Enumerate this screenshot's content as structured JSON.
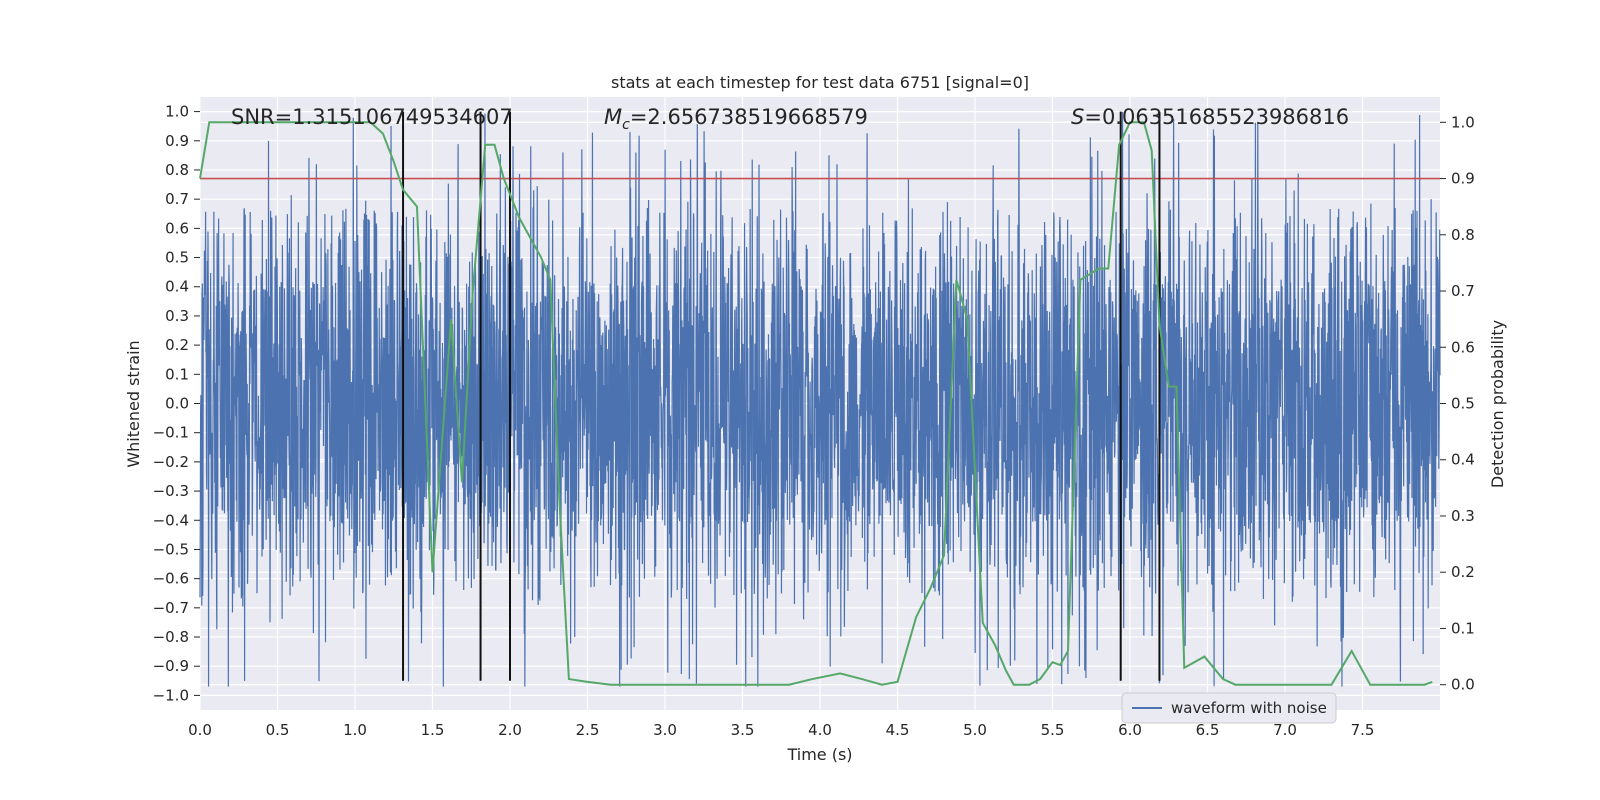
{
  "chart_data": {
    "type": "line",
    "title": "stats at each timestep for test data 6751 [signal=0]",
    "xlabel": "Time (s)",
    "ylabel_left": "Whitened strain",
    "ylabel_right": "Detection probability",
    "xlim": [
      0.0,
      8.0
    ],
    "ylim_left": [
      -1.05,
      1.05
    ],
    "ylim_right": [
      -0.045,
      1.045
    ],
    "x_ticks": [
      0.0,
      0.5,
      1.0,
      1.5,
      2.0,
      2.5,
      3.0,
      3.5,
      4.0,
      4.5,
      5.0,
      5.5,
      6.0,
      6.5,
      7.0,
      7.5
    ],
    "x_tick_labels": [
      "0.0",
      "0.5",
      "1.0",
      "1.5",
      "2.0",
      "2.5",
      "3.0",
      "3.5",
      "4.0",
      "4.5",
      "5.0",
      "5.5",
      "6.0",
      "6.5",
      "7.0",
      "7.5"
    ],
    "y_left_ticks": [
      1.0,
      0.9,
      0.8,
      0.7,
      0.6,
      0.5,
      0.4,
      0.3,
      0.2,
      0.1,
      0.0,
      -0.1,
      -0.2,
      -0.3,
      -0.4,
      -0.5,
      -0.6,
      -0.7,
      -0.8,
      -0.9,
      -1.0
    ],
    "y_left_tick_labels": [
      "1.0",
      "0.9",
      "0.8",
      "0.7",
      "0.6",
      "0.5",
      "0.4",
      "0.3",
      "0.2",
      "0.1",
      "0.0",
      "−0.1",
      "−0.2",
      "−0.3",
      "−0.4",
      "−0.5",
      "−0.6",
      "−0.7",
      "−0.8",
      "−0.9",
      "−1.0"
    ],
    "y_right_ticks": [
      1.0,
      0.9,
      0.8,
      0.7,
      0.6,
      0.5,
      0.4,
      0.3,
      0.2,
      0.1,
      0.0
    ],
    "y_right_tick_labels": [
      "1.0",
      "0.9",
      "0.8",
      "0.7",
      "0.6",
      "0.5",
      "0.4",
      "0.3",
      "0.2",
      "0.1",
      "0.0"
    ],
    "annotations": {
      "snr": "SNR=1.315106749534607",
      "mc_symbol": "M",
      "mc_sub": "c",
      "mc_value": "=2.656738519668579",
      "s_symbol": "S",
      "s_value": "=0.06351685523986816"
    },
    "threshold": {
      "value": 0.9,
      "axis": "right",
      "color": "#c44e52"
    },
    "vlines": [
      1.31,
      1.81,
      2.0,
      5.94,
      6.19
    ],
    "vline_range": [
      -0.95,
      1.0
    ],
    "legend": {
      "label": "waveform with noise",
      "placement": "lower-right"
    },
    "series": [
      {
        "name": "waveform with noise",
        "color": "#4c72b0",
        "axis": "left",
        "kind": "noise",
        "sample_rate": 2048,
        "base_amplitude": 0.42,
        "approx_range": [
          -0.97,
          1.0
        ]
      },
      {
        "name": "detection probability",
        "color": "#55a868",
        "axis": "right",
        "x": [
          0.0,
          0.06,
          0.2,
          0.5,
          0.75,
          1.0,
          1.1,
          1.18,
          1.25,
          1.31,
          1.4,
          1.5,
          1.62,
          1.69,
          1.76,
          1.84,
          1.9,
          1.96,
          2.06,
          2.2,
          2.26,
          2.32,
          2.38,
          2.5,
          2.65,
          3.0,
          3.5,
          3.8,
          3.95,
          4.13,
          4.27,
          4.4,
          4.5,
          4.62,
          4.71,
          4.8,
          4.88,
          4.95,
          5.05,
          5.13,
          5.2,
          5.25,
          5.35,
          5.42,
          5.5,
          5.55,
          5.6,
          5.68,
          5.8,
          5.86,
          5.93,
          6.0,
          6.09,
          6.14,
          6.19,
          6.25,
          6.3,
          6.35,
          6.48,
          6.6,
          6.68,
          7.0,
          7.3,
          7.43,
          7.55,
          7.62,
          7.75,
          7.9,
          7.95
        ],
        "y": [
          0.9,
          1.0,
          1.0,
          1.0,
          1.0,
          1.0,
          1.0,
          0.98,
          0.93,
          0.88,
          0.85,
          0.2,
          0.65,
          0.36,
          0.7,
          0.96,
          0.96,
          0.9,
          0.83,
          0.76,
          0.72,
          0.32,
          0.01,
          0.005,
          0.0,
          0.0,
          0.0,
          0.0,
          0.01,
          0.02,
          0.01,
          0.0,
          0.005,
          0.12,
          0.17,
          0.23,
          0.72,
          0.65,
          0.11,
          0.07,
          0.025,
          0.0,
          0.0,
          0.01,
          0.04,
          0.035,
          0.06,
          0.72,
          0.74,
          0.74,
          0.96,
          1.0,
          1.0,
          0.95,
          0.64,
          0.53,
          0.53,
          0.03,
          0.05,
          0.01,
          0.0,
          0.0,
          0.0,
          0.06,
          0.0,
          0.0,
          0.0,
          0.0,
          0.005
        ]
      }
    ]
  }
}
